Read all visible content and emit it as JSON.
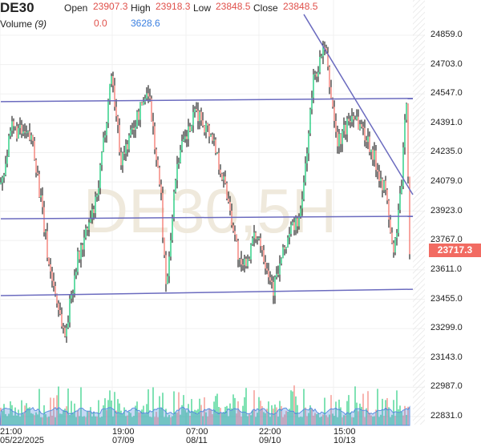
{
  "header": {
    "symbol": "DE30",
    "open_label": "Open",
    "open": "23907.3",
    "high_label": "High",
    "high": "23918.3",
    "low_label": "Low",
    "low": "23848.5",
    "close_label": "Close",
    "close": "23848.5",
    "volume_label": "Volume",
    "volume_period": "(9)",
    "volume_value1": "0.0",
    "volume_value2": "3628.6"
  },
  "watermark": "DE30,5H",
  "colors": {
    "up": "#00c46a",
    "down": "#f26b62",
    "wick": "#000000",
    "trendline": "#6b6bbf",
    "volume_ma": "#5b8fe0",
    "price_tag": "#f26b62"
  },
  "chart_data": {
    "type": "candlestick",
    "symbol": "DE30",
    "timeframe": "5H",
    "last_price": "23717.3",
    "ylim": [
      22780,
      25000
    ],
    "y_ticks": [
      "24859.0",
      "24703.0",
      "24547.0",
      "24391.0",
      "24235.0",
      "24079.0",
      "23923.0",
      "23767.0",
      "23611.0",
      "23455.0",
      "23299.0",
      "23143.0",
      "22987.0",
      "22831.0"
    ],
    "x_ticks": [
      {
        "time": "21:00",
        "date": "05/22/2025"
      },
      {
        "time": "19:00",
        "date": "07/09"
      },
      {
        "time": "07:00",
        "date": "08/11"
      },
      {
        "time": "22:00",
        "date": "09/10"
      },
      {
        "time": "15:00",
        "date": "10/13"
      }
    ],
    "approx_close_path": [
      [
        0,
        24067
      ],
      [
        7,
        24365
      ],
      [
        20,
        24301
      ],
      [
        30,
        23641
      ],
      [
        40,
        23257
      ],
      [
        47,
        23641
      ],
      [
        60,
        23982
      ],
      [
        69,
        24663
      ],
      [
        75,
        24194
      ],
      [
        92,
        24578
      ],
      [
        100,
        23982
      ],
      [
        103,
        23513
      ],
      [
        110,
        24194
      ],
      [
        122,
        24450
      ],
      [
        132,
        24322
      ],
      [
        142,
        23982
      ],
      [
        150,
        23598
      ],
      [
        160,
        23811
      ],
      [
        170,
        23513
      ],
      [
        180,
        23811
      ],
      [
        187,
        23896
      ],
      [
        195,
        24620
      ],
      [
        202,
        24791
      ],
      [
        210,
        24280
      ],
      [
        220,
        24450
      ],
      [
        230,
        24280
      ],
      [
        240,
        24024
      ],
      [
        245,
        23683
      ],
      [
        250,
        24067
      ],
      [
        253,
        24535
      ],
      [
        255,
        23717
      ]
    ],
    "trendlines": [
      {
        "from": [
          0,
          24506
        ],
        "to": [
          257,
          24523
        ]
      },
      {
        "from": [
          0,
          23883
        ],
        "to": [
          257,
          23896
        ]
      },
      {
        "from": [
          0,
          23474
        ],
        "to": [
          257,
          23508
        ]
      },
      {
        "from": [
          189,
          24970
        ],
        "to": [
          257,
          24011
        ]
      }
    ],
    "grid": true
  }
}
